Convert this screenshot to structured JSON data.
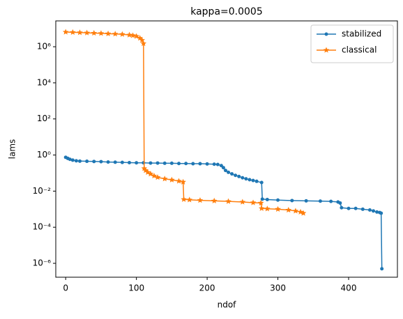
{
  "chart_data": {
    "type": "line",
    "title": "kappa=0.0005",
    "xlabel": "ndof",
    "ylabel": "lams",
    "xlim": [
      -14,
      469
    ],
    "xticks": [
      0,
      100,
      200,
      300,
      400
    ],
    "ylim": [
      1.7e-07,
      27000000.0
    ],
    "log_y": true,
    "yticks": [
      {
        "value": 1e-06,
        "label": "10⁻⁶"
      },
      {
        "value": 0.0001,
        "label": "10⁻⁴"
      },
      {
        "value": 0.01,
        "label": "10⁻²"
      },
      {
        "value": 1,
        "label": "10⁰"
      },
      {
        "value": 100,
        "label": "10²"
      },
      {
        "value": 10000,
        "label": "10⁴"
      },
      {
        "value": 1000000,
        "label": "10⁶"
      }
    ],
    "legend": "upper right",
    "series": [
      {
        "name": "stabilized",
        "color": "#1f77b4",
        "marker": "circle",
        "x": [
          0,
          3,
          6,
          10,
          15,
          20,
          30,
          40,
          50,
          60,
          70,
          80,
          90,
          100,
          110,
          120,
          130,
          140,
          150,
          160,
          170,
          180,
          190,
          200,
          210,
          215,
          220,
          223,
          226,
          230,
          235,
          240,
          245,
          250,
          255,
          260,
          265,
          270,
          277,
          278,
          285,
          300,
          320,
          340,
          360,
          375,
          385,
          388,
          390,
          400,
          410,
          420,
          430,
          435,
          440,
          444,
          446,
          447
        ],
        "values": [
          0.75,
          0.65,
          0.58,
          0.52,
          0.48,
          0.46,
          0.45,
          0.44,
          0.43,
          0.41,
          0.4,
          0.39,
          0.38,
          0.37,
          0.37,
          0.36,
          0.36,
          0.35,
          0.35,
          0.34,
          0.34,
          0.33,
          0.33,
          0.32,
          0.31,
          0.3,
          0.26,
          0.2,
          0.14,
          0.11,
          0.09,
          0.075,
          0.065,
          0.055,
          0.048,
          0.043,
          0.039,
          0.035,
          0.03,
          0.0036,
          0.0034,
          0.0032,
          0.003,
          0.0029,
          0.0028,
          0.0027,
          0.0025,
          0.0022,
          0.0012,
          0.0011,
          0.0011,
          0.001,
          0.0009,
          0.0008,
          0.0007,
          0.00065,
          0.0006,
          5e-07
        ]
      },
      {
        "name": "classical",
        "color": "#ff7f0e",
        "marker": "star",
        "x": [
          0,
          10,
          20,
          30,
          40,
          50,
          60,
          70,
          80,
          90,
          95,
          100,
          105,
          108,
          110,
          111,
          113,
          116,
          120,
          125,
          130,
          140,
          150,
          160,
          166,
          167,
          175,
          190,
          210,
          230,
          250,
          265,
          276,
          277,
          285,
          300,
          315,
          325,
          332,
          336
        ],
        "values": [
          6500000,
          6300000,
          6100000,
          5900000,
          5700000,
          5500000,
          5300000,
          5100000,
          4900000,
          4500000,
          4200000,
          3800000,
          3000000,
          2300000,
          1500000,
          0.18,
          0.14,
          0.11,
          0.09,
          0.07,
          0.058,
          0.048,
          0.042,
          0.036,
          0.032,
          0.0035,
          0.0033,
          0.0031,
          0.0029,
          0.0027,
          0.0025,
          0.0023,
          0.0022,
          0.0011,
          0.00105,
          0.001,
          0.0009,
          0.0008,
          0.0007,
          0.0006
        ]
      }
    ]
  }
}
